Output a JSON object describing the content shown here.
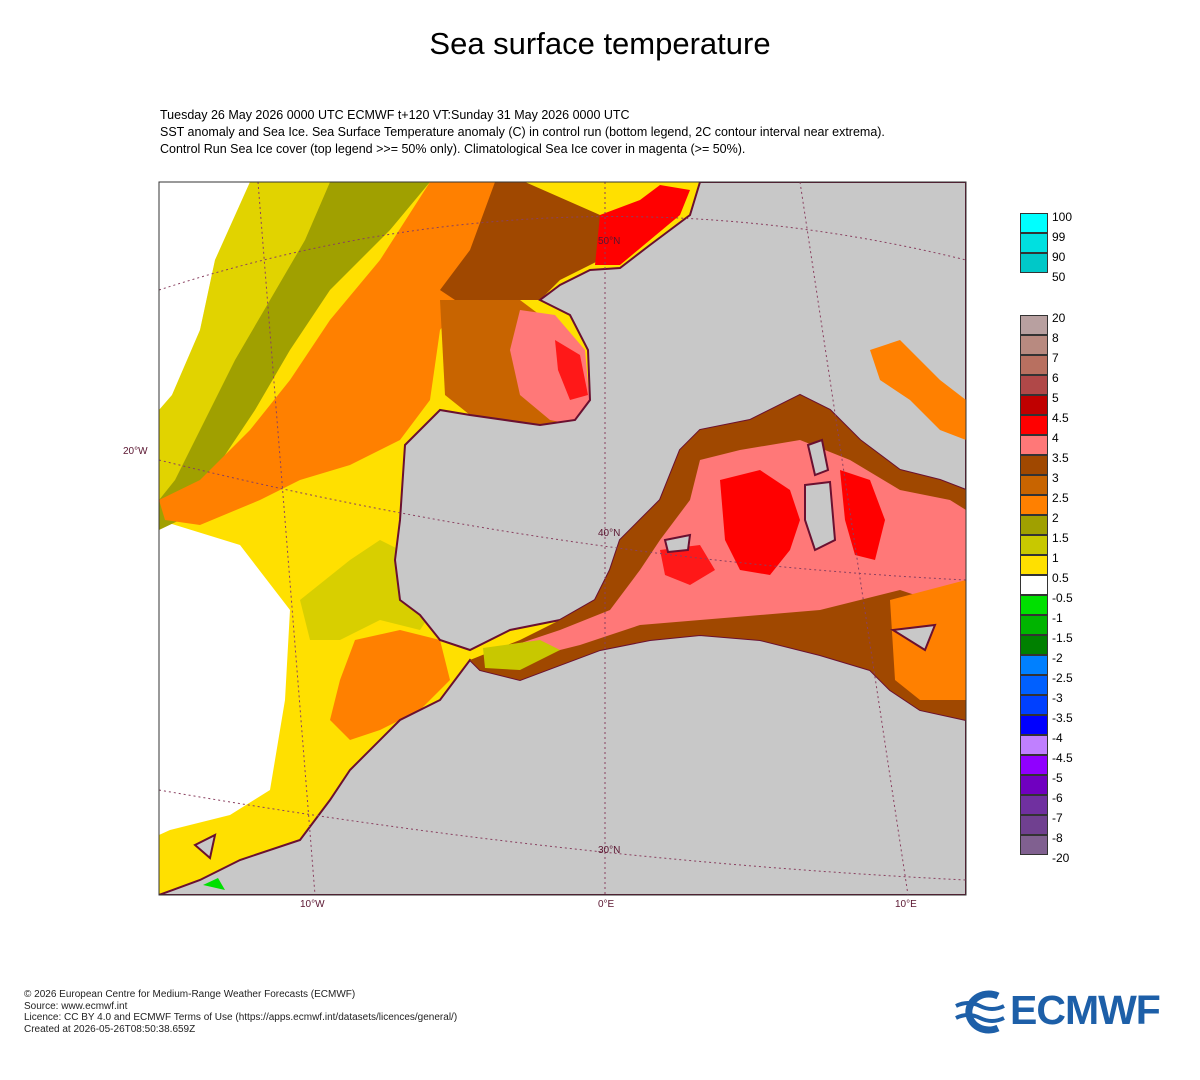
{
  "title": "Sea surface temperature",
  "subtitle": [
    "Tuesday 26 May 2026 0000 UTC   ECMWF  t+120  VT:Sunday 31 May 2026 0000 UTC",
    "SST anomaly and Sea Ice. Sea Surface Temperature anomaly (C) in control run (bottom legend, 2C contour interval near extrema).",
    "Control Run Sea Ice cover (top legend >>= 50% only). Climatological Sea Ice cover in magenta (>= 50%)."
  ],
  "map_labels": {
    "lon": [
      "10°W",
      "0°E",
      "10°E"
    ],
    "lat": [
      "20°W",
      "50°N",
      "40°N",
      "30°N"
    ]
  },
  "ice_legend": {
    "labels": [
      "100",
      "99",
      "90",
      "50"
    ],
    "colors": [
      "#00ffff",
      "#00e0e0",
      "#00c8c8"
    ]
  },
  "sst_legend": {
    "labels": [
      "20",
      "8",
      "7",
      "6",
      "5",
      "4.5",
      "4",
      "3.5",
      "3",
      "2.5",
      "2",
      "1.5",
      "1",
      "0.5",
      "-0.5",
      "-1",
      "-1.5",
      "-2",
      "-2.5",
      "-3",
      "-3.5",
      "-4",
      "-4.5",
      "-5",
      "-6",
      "-7",
      "-8",
      "-20"
    ],
    "colors": [
      "#b8a0a0",
      "#b88a80",
      "#b87060",
      "#b04848",
      "#c00000",
      "#ff0000",
      "#ff7878",
      "#a04800",
      "#c86400",
      "#ff8000",
      "#a0a000",
      "#c8c800",
      "#ffe000",
      "#ffffff",
      "#00e000",
      "#00b400",
      "#008000",
      "#0080ff",
      "#0060ff",
      "#0040ff",
      "#0000ff",
      "#c080ff",
      "#9000ff",
      "#7000c0",
      "#7030a0",
      "#704090",
      "#806090"
    ]
  },
  "footer": [
    "© 2026 European Centre for Medium-Range Weather Forecasts (ECMWF)",
    "Source: www.ecmwf.int",
    "Licence: CC BY 4.0 and ECMWF Terms of Use (https://apps.ecmwf.int/datasets/licences/general/)",
    "Created at 2026-05-26T08:50:38.659Z"
  ],
  "logo": {
    "text": "ECMWF",
    "color": "#1d5fa8"
  }
}
